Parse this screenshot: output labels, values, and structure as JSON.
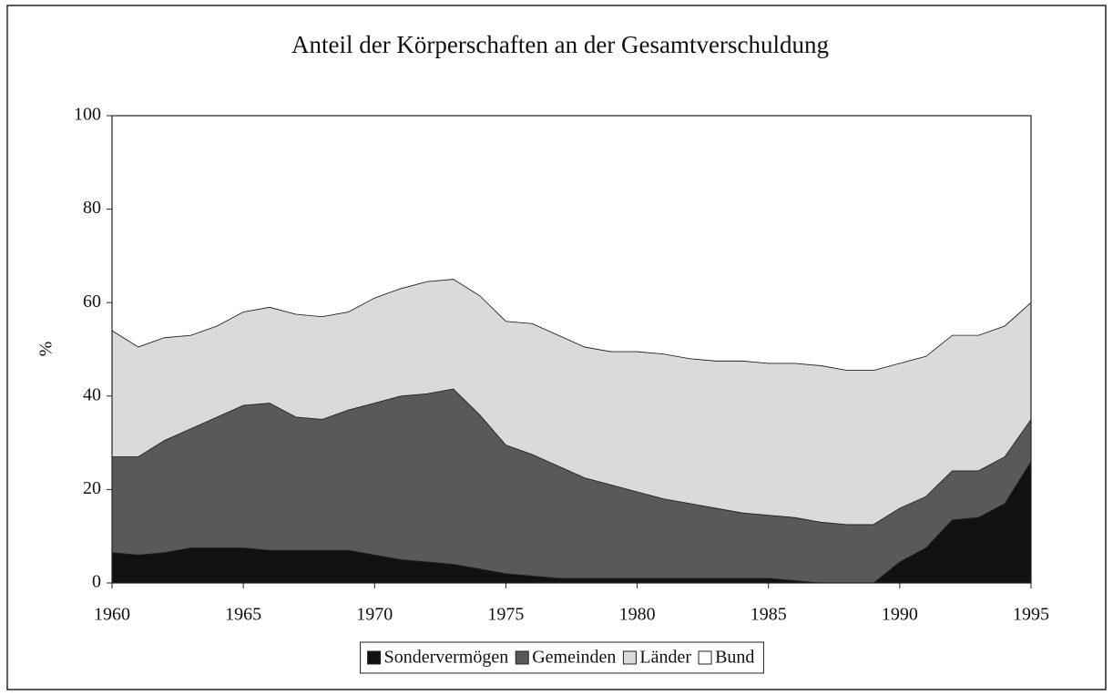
{
  "chart_data": {
    "type": "stacked-area",
    "title": "Anteil der Körperschaften an der Gesamtverschuldung",
    "y_label": "%",
    "x": [
      1960,
      1961,
      1962,
      1963,
      1964,
      1965,
      1966,
      1967,
      1968,
      1969,
      1970,
      1971,
      1972,
      1973,
      1974,
      1975,
      1976,
      1977,
      1978,
      1979,
      1980,
      1981,
      1982,
      1983,
      1984,
      1985,
      1986,
      1987,
      1988,
      1989,
      1990,
      1991,
      1992,
      1993,
      1994,
      1995
    ],
    "series": [
      {
        "name": "Sondervermögen",
        "color": "#111111",
        "values": [
          6.5,
          6,
          6.5,
          7.5,
          7.5,
          7.5,
          7,
          7,
          7,
          7,
          6,
          5,
          4.5,
          4,
          3,
          2,
          1.5,
          1,
          1,
          1,
          1,
          1,
          1,
          1,
          1,
          1,
          0.5,
          0,
          0,
          0,
          4.5,
          7.5,
          13.5,
          14,
          17,
          26
        ]
      },
      {
        "name": "Gemeinden",
        "color": "#595959",
        "values": [
          20.5,
          21,
          24,
          25.5,
          28,
          30.5,
          31.5,
          28.5,
          28,
          30,
          32.5,
          35,
          36,
          37.5,
          33,
          27.5,
          26,
          24,
          21.5,
          20,
          18.5,
          17,
          16,
          15,
          14,
          13.5,
          13.5,
          13,
          12.5,
          12.5,
          11.5,
          11,
          10.5,
          10,
          10,
          9
        ]
      },
      {
        "name": "Länder",
        "color": "#dadada",
        "values": [
          27,
          23.5,
          22,
          20,
          19.5,
          20,
          20.5,
          22,
          22,
          21,
          22.5,
          23,
          24,
          23.5,
          25.5,
          26.5,
          28,
          28,
          28,
          28.5,
          30,
          31,
          31,
          31.5,
          32.5,
          32.5,
          33,
          33.5,
          33,
          33,
          31,
          30,
          29,
          29,
          28,
          25
        ]
      },
      {
        "name": "Bund",
        "color": "#ffffff",
        "values": [
          46,
          49.5,
          47.5,
          47,
          45,
          42,
          41,
          42.5,
          43,
          42,
          39,
          37,
          35.5,
          35,
          38.5,
          44,
          44.5,
          47,
          49.5,
          50.5,
          50.5,
          51,
          52,
          52.5,
          52.5,
          53,
          53,
          53.5,
          54.5,
          54.5,
          53,
          51.5,
          47,
          47,
          45,
          40
        ]
      }
    ],
    "xlim": [
      1960,
      1995
    ],
    "xticks": [
      1960,
      1965,
      1970,
      1975,
      1980,
      1985,
      1990,
      1995
    ],
    "ylim": [
      0,
      100
    ],
    "yticks": [
      0,
      20,
      40,
      60,
      80,
      100
    ],
    "grid": false,
    "legend": "bottom"
  }
}
